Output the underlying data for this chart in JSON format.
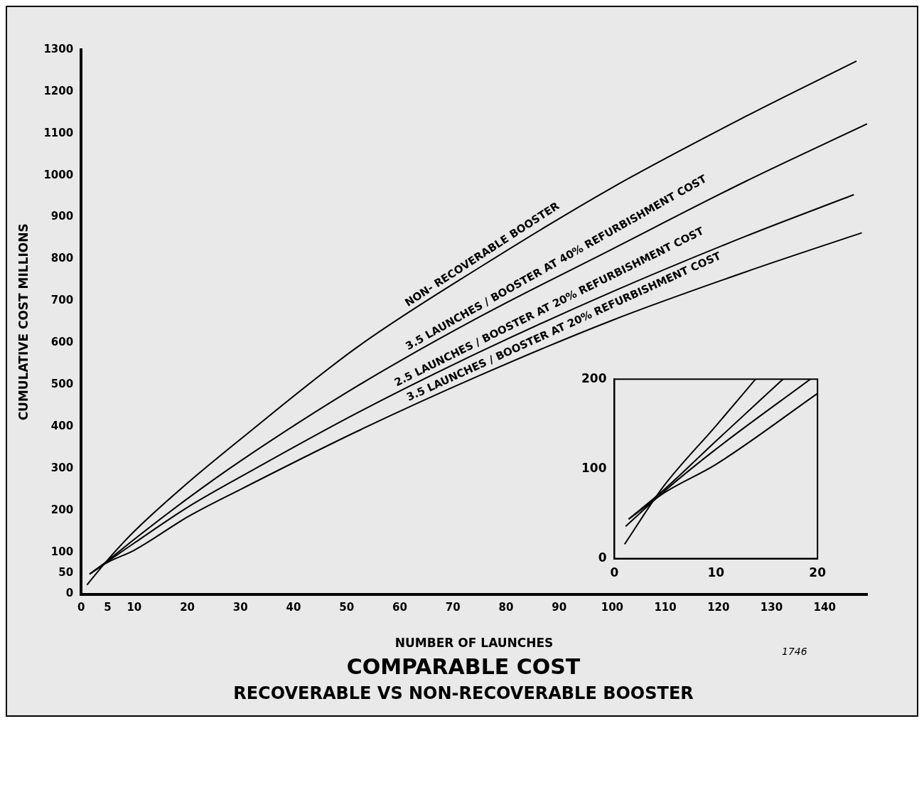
{
  "chart_data": [
    {
      "type": "line",
      "title": "COMPARABLE COST",
      "subtitle": "RECOVERABLE VS NON-RECOVERABLE BOOSTER",
      "xlabel": "NUMBER OF LAUNCHES",
      "ylabel": "CUMULATIVE COST MILLIONS",
      "annotations": [
        "1746"
      ],
      "marker": "none",
      "line_style": "solid",
      "xlim": [
        0,
        148
      ],
      "ylim": [
        0,
        1300
      ],
      "xticks": [
        0,
        5,
        10,
        20,
        30,
        40,
        50,
        60,
        70,
        80,
        90,
        100,
        110,
        120,
        130,
        140
      ],
      "yticks": [
        0,
        50,
        100,
        200,
        300,
        400,
        500,
        600,
        700,
        800,
        900,
        1000,
        1100,
        1200,
        1300
      ],
      "series": [
        {
          "name": "NON- RECOVERABLE BOOSTER",
          "color": "#000000",
          "x": [
            1.1,
            5,
            10,
            20,
            30,
            52,
            75,
            100,
            125,
            146
          ],
          "values": [
            22,
            82,
            150,
            265,
            370,
            590,
            780,
            971,
            1140,
            1273
          ]
        },
        {
          "name": "3.5 LAUNCHES / BOOSTER AT 40% REFURBISHMENT COST",
          "color": "#000000",
          "x": [
            1.6,
            5,
            10,
            20,
            30,
            52,
            75,
            100,
            125,
            148
          ],
          "values": [
            48,
            80,
            131,
            228,
            318,
            497,
            662,
            824,
            985,
            1123
          ]
        },
        {
          "name": "2.5 LAUNCHES / BOOSTER AT 20% REFURBISHMENT COST",
          "color": "#000000",
          "x": [
            1.6,
            5,
            10,
            20,
            30,
            52,
            75,
            100,
            125,
            145.5
          ],
          "values": [
            48,
            78,
            122,
            207,
            280,
            433,
            578,
            722,
            854,
            954
          ]
        },
        {
          "name": "3.5 LAUNCHES / BOOSTER AT 20% REFURBISHMENT COST",
          "color": "#000000",
          "x": [
            1.6,
            5,
            10,
            20,
            30,
            52,
            75,
            100,
            125,
            147
          ],
          "values": [
            48,
            76,
            105,
            184,
            250,
            389,
            522,
            654,
            769,
            863
          ]
        }
      ]
    },
    {
      "type": "line",
      "marker": "none",
      "line_style": "solid",
      "xlim": [
        0,
        20
      ],
      "ylim": [
        0,
        200
      ],
      "xticks": [
        0,
        10,
        20
      ],
      "yticks": [
        0,
        100,
        200
      ],
      "series": [
        {
          "color": "#000000",
          "x": [
            1,
            4.8,
            10,
            13.9
          ],
          "values": [
            16,
            80,
            148,
            200
          ]
        },
        {
          "color": "#000000",
          "x": [
            1.4,
            5,
            10,
            16.6
          ],
          "values": [
            44,
            78,
            131,
            200
          ]
        },
        {
          "color": "#000000",
          "x": [
            1.1,
            5,
            10,
            19.3
          ],
          "values": [
            36,
            76,
            122,
            200
          ]
        },
        {
          "color": "#000000",
          "x": [
            1.4,
            5,
            10,
            20
          ],
          "values": [
            44,
            74,
            105,
            184
          ]
        }
      ]
    }
  ]
}
